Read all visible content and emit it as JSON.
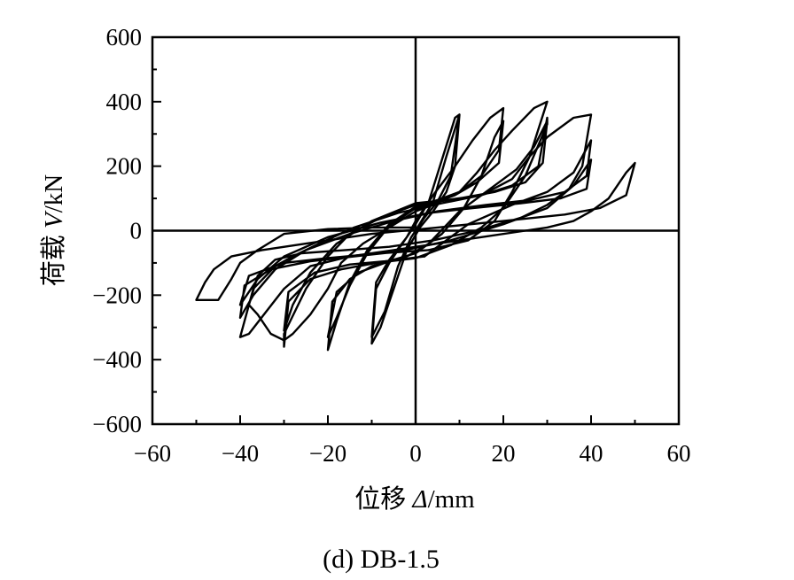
{
  "chart_data": {
    "type": "line",
    "subtitle": "(d) DB-1.5",
    "xlabel": {
      "main": "位移 ",
      "symbol": "Δ",
      "unit": "/mm"
    },
    "ylabel": {
      "main": "荷载 ",
      "symbol": "V",
      "unit": "/kN"
    },
    "xlim": [
      -60,
      60
    ],
    "ylim": [
      -600,
      600
    ],
    "xticks": [
      -60,
      -40,
      -20,
      0,
      20,
      40,
      60
    ],
    "yticks": [
      -600,
      -400,
      -200,
      0,
      200,
      400,
      600
    ],
    "xtick_labels": [
      "−60",
      "−40",
      "−20",
      "0",
      "20",
      "40",
      "60"
    ],
    "ytick_labels": [
      "−600",
      "−400",
      "−200",
      "0",
      "200",
      "400",
      "600"
    ],
    "grid": false,
    "reference_lines": {
      "x0": true,
      "y0": true
    },
    "series": [
      {
        "values": [
          [
            0,
            0
          ],
          [
            4,
            90
          ],
          [
            7,
            230
          ],
          [
            10,
            360
          ],
          [
            9,
            200
          ],
          [
            7,
            120
          ],
          [
            4,
            60
          ],
          [
            1,
            10
          ],
          [
            -2,
            -60
          ],
          [
            -5,
            -180
          ],
          [
            -8,
            -300
          ],
          [
            -10,
            -350
          ],
          [
            -9,
            -180
          ],
          [
            -6,
            -100
          ],
          [
            -3,
            -40
          ],
          [
            0,
            20
          ],
          [
            3,
            90
          ],
          [
            6,
            220
          ],
          [
            9,
            350
          ],
          [
            10,
            360
          ],
          [
            8,
            170
          ],
          [
            5,
            90
          ],
          [
            2,
            40
          ],
          [
            -1,
            -20
          ],
          [
            -4,
            -110
          ],
          [
            -7,
            -250
          ],
          [
            -10,
            -330
          ],
          [
            -9,
            -160
          ],
          [
            -6,
            -90
          ],
          [
            -2,
            -20
          ],
          [
            0,
            30
          ]
        ]
      },
      {
        "values": [
          [
            0,
            30
          ],
          [
            4,
            110
          ],
          [
            9,
            200
          ],
          [
            13,
            280
          ],
          [
            17,
            350
          ],
          [
            20,
            380
          ],
          [
            19,
            250
          ],
          [
            15,
            170
          ],
          [
            10,
            120
          ],
          [
            5,
            95
          ],
          [
            0,
            75
          ],
          [
            -6,
            20
          ],
          [
            -11,
            -60
          ],
          [
            -15,
            -160
          ],
          [
            -18,
            -280
          ],
          [
            -20,
            -370
          ],
          [
            -19,
            -220
          ],
          [
            -15,
            -150
          ],
          [
            -10,
            -110
          ],
          [
            -5,
            -90
          ],
          [
            0,
            -70
          ],
          [
            6,
            -10
          ],
          [
            11,
            70
          ],
          [
            15,
            170
          ],
          [
            18,
            290
          ],
          [
            20,
            340
          ],
          [
            19,
            210
          ],
          [
            14,
            150
          ],
          [
            9,
            110
          ],
          [
            4,
            85
          ],
          [
            0,
            70
          ],
          [
            -6,
            15
          ],
          [
            -11,
            -70
          ],
          [
            -15,
            -170
          ],
          [
            -18,
            -270
          ],
          [
            -20,
            -330
          ],
          [
            -18,
            -190
          ],
          [
            -13,
            -130
          ],
          [
            -7,
            -100
          ],
          [
            -2,
            -80
          ],
          [
            3,
            -40
          ]
        ]
      },
      {
        "values": [
          [
            3,
            -40
          ],
          [
            10,
            60
          ],
          [
            17,
            130
          ],
          [
            23,
            190
          ],
          [
            27,
            260
          ],
          [
            30,
            340
          ],
          [
            29,
            210
          ],
          [
            25,
            150
          ],
          [
            18,
            120
          ],
          [
            10,
            100
          ],
          [
            0,
            80
          ],
          [
            -8,
            40
          ],
          [
            -15,
            -10
          ],
          [
            -20,
            -80
          ],
          [
            -25,
            -180
          ],
          [
            -30,
            -320
          ],
          [
            -30,
            -360
          ],
          [
            -29,
            -220
          ],
          [
            -24,
            -150
          ],
          [
            -17,
            -120
          ],
          [
            -9,
            -100
          ],
          [
            0,
            -85
          ],
          [
            8,
            -45
          ],
          [
            15,
            10
          ],
          [
            20,
            70
          ],
          [
            25,
            170
          ],
          [
            30,
            330
          ],
          [
            30,
            350
          ],
          [
            28,
            200
          ],
          [
            22,
            140
          ],
          [
            15,
            110
          ],
          [
            7,
            95
          ],
          [
            0,
            85
          ],
          [
            -10,
            30
          ],
          [
            -18,
            -40
          ],
          [
            -24,
            -130
          ],
          [
            -28,
            -230
          ],
          [
            -30,
            -310
          ],
          [
            -29,
            -190
          ],
          [
            -23,
            -130
          ],
          [
            -15,
            -105
          ],
          [
            -7,
            -95
          ],
          [
            2,
            -80
          ]
        ]
      },
      {
        "values": [
          [
            2,
            -80
          ],
          [
            12,
            20
          ],
          [
            22,
            80
          ],
          [
            30,
            120
          ],
          [
            36,
            180
          ],
          [
            40,
            280
          ],
          [
            39,
            170
          ],
          [
            34,
            120
          ],
          [
            26,
            95
          ],
          [
            16,
            80
          ],
          [
            5,
            60
          ],
          [
            -5,
            30
          ],
          [
            -15,
            -10
          ],
          [
            -25,
            -60
          ],
          [
            -32,
            -120
          ],
          [
            -37,
            -200
          ],
          [
            -40,
            -270
          ],
          [
            -39,
            -170
          ],
          [
            -33,
            -120
          ],
          [
            -24,
            -95
          ],
          [
            -14,
            -80
          ],
          [
            -4,
            -65
          ],
          [
            8,
            -30
          ],
          [
            20,
            20
          ],
          [
            30,
            70
          ],
          [
            36,
            140
          ],
          [
            40,
            220
          ],
          [
            39,
            130
          ],
          [
            33,
            100
          ],
          [
            24,
            85
          ],
          [
            13,
            70
          ],
          [
            3,
            55
          ],
          [
            -8,
            25
          ],
          [
            -20,
            -20
          ],
          [
            -30,
            -80
          ],
          [
            -36,
            -150
          ],
          [
            -40,
            -230
          ],
          [
            -38,
            -140
          ],
          [
            -30,
            -100
          ],
          [
            -20,
            -85
          ],
          [
            -8,
            -70
          ],
          [
            3,
            -60
          ]
        ]
      },
      {
        "values": [
          [
            3,
            -60
          ],
          [
            12,
            -30
          ],
          [
            18,
            30
          ],
          [
            22,
            120
          ],
          [
            26,
            230
          ],
          [
            30,
            400
          ],
          [
            27,
            380
          ],
          [
            22,
            310
          ],
          [
            18,
            250
          ],
          [
            14,
            180
          ],
          [
            10,
            120
          ],
          [
            4,
            80
          ],
          [
            0,
            60
          ],
          [
            -6,
            10
          ],
          [
            -12,
            -40
          ],
          [
            -17,
            -100
          ],
          [
            -20,
            -180
          ],
          [
            -24,
            -260
          ],
          [
            -28,
            -320
          ],
          [
            -30,
            -340
          ],
          [
            -33,
            -320
          ],
          [
            -36,
            -260
          ],
          [
            -38,
            -230
          ],
          [
            -36,
            -140
          ],
          [
            -32,
            -90
          ],
          [
            -26,
            -70
          ],
          [
            -16,
            -60
          ],
          [
            -6,
            -50
          ],
          [
            4,
            -30
          ],
          [
            14,
            0
          ],
          [
            24,
            40
          ],
          [
            30,
            80
          ],
          [
            35,
            130
          ],
          [
            38,
            200
          ],
          [
            40,
            360
          ],
          [
            36,
            350
          ],
          [
            30,
            290
          ],
          [
            26,
            230
          ],
          [
            22,
            160
          ],
          [
            15,
            110
          ],
          [
            6,
            85
          ],
          [
            -4,
            55
          ],
          [
            -14,
            10
          ],
          [
            -22,
            -40
          ],
          [
            -28,
            -80
          ],
          [
            -32,
            -110
          ],
          [
            -37,
            -180
          ],
          [
            -40,
            -330
          ],
          [
            -38,
            -320
          ],
          [
            -34,
            -250
          ],
          [
            -30,
            -180
          ],
          [
            -24,
            -110
          ],
          [
            -15,
            -80
          ],
          [
            -5,
            -60
          ],
          [
            5,
            -40
          ],
          [
            15,
            -20
          ],
          [
            25,
            0
          ],
          [
            30,
            10
          ],
          [
            36,
            30
          ],
          [
            40,
            60
          ],
          [
            44,
            100
          ],
          [
            48,
            180
          ],
          [
            50,
            210
          ],
          [
            48,
            110
          ],
          [
            42,
            70
          ],
          [
            34,
            50
          ],
          [
            20,
            30
          ],
          [
            5,
            10
          ],
          [
            -10,
            -10
          ],
          [
            -25,
            -40
          ],
          [
            -35,
            -60
          ],
          [
            -42,
            -80
          ],
          [
            -46,
            -120
          ],
          [
            -48,
            -160
          ],
          [
            -50,
            -215
          ],
          [
            -45,
            -215
          ],
          [
            -42,
            -150
          ],
          [
            -40,
            -100
          ],
          [
            -36,
            -60
          ],
          [
            -30,
            -10
          ],
          [
            -20,
            5
          ],
          [
            -10,
            10
          ],
          [
            0,
            10
          ]
        ]
      }
    ]
  }
}
